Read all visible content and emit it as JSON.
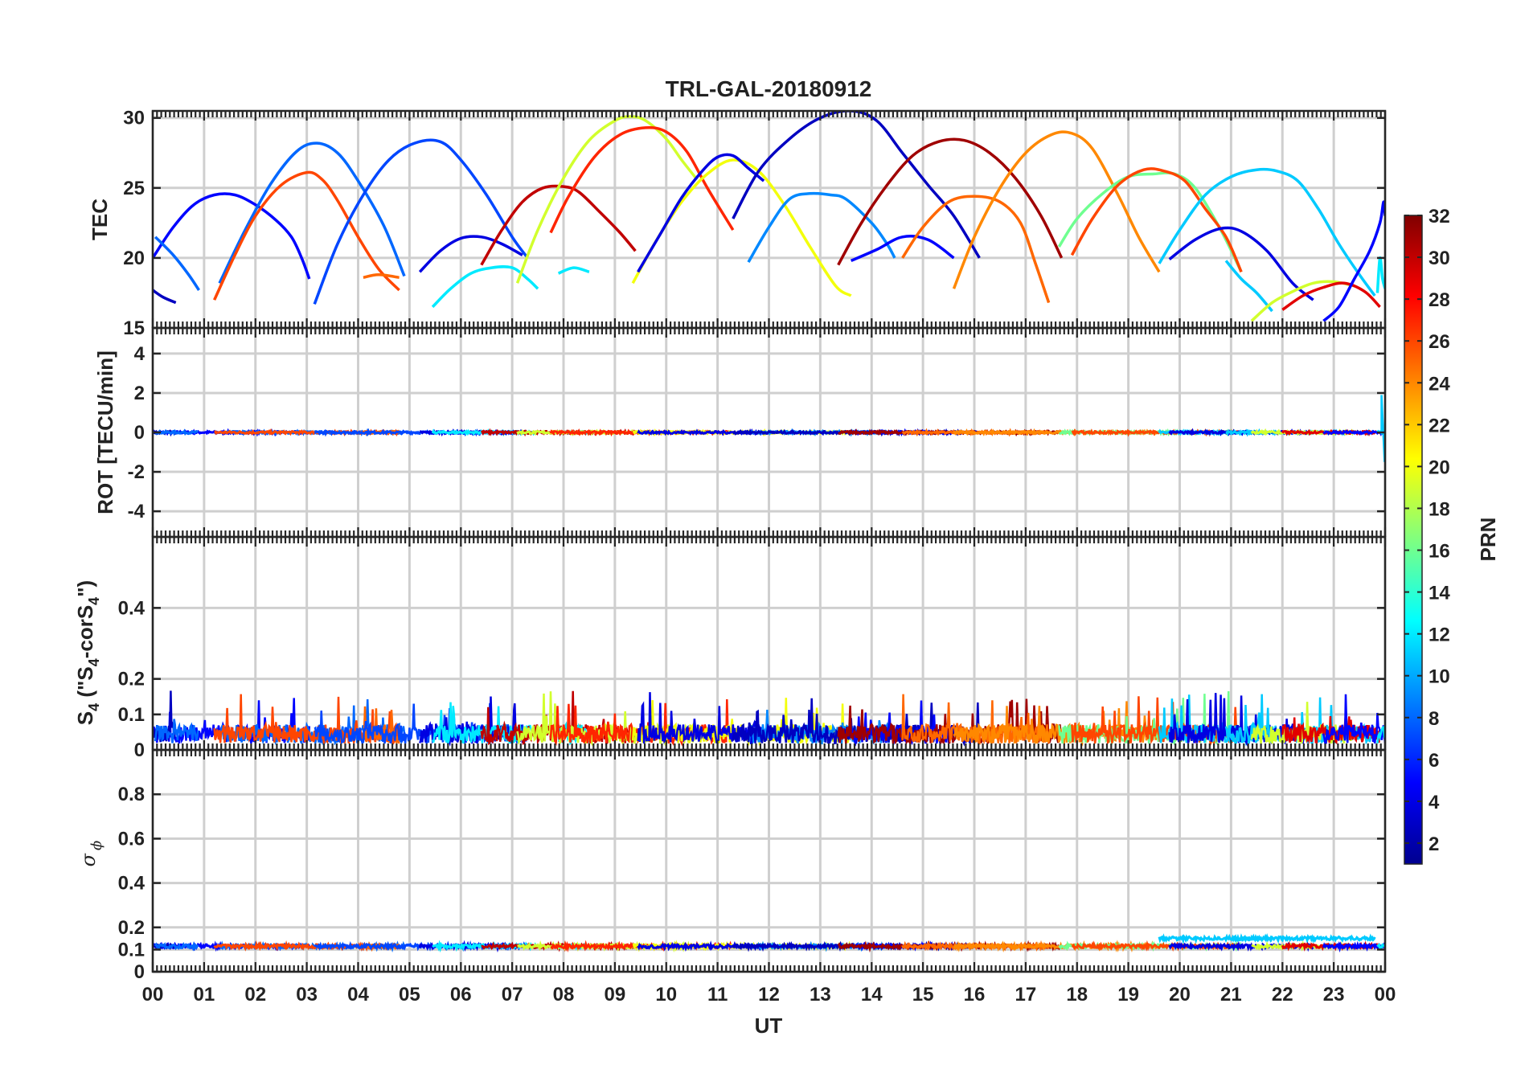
{
  "chart_data": {
    "type": "line",
    "title": "TRL-GAL-20180912",
    "xlabel": "UT",
    "x_ticks": [
      "00",
      "01",
      "02",
      "03",
      "04",
      "05",
      "06",
      "07",
      "08",
      "09",
      "10",
      "11",
      "12",
      "13",
      "14",
      "15",
      "16",
      "17",
      "18",
      "19",
      "20",
      "21",
      "22",
      "23",
      "00"
    ],
    "xlim": [
      0,
      24
    ],
    "colorbar": {
      "label": "PRN",
      "range": [
        1,
        32
      ],
      "ticks": [
        "2",
        "4",
        "6",
        "8",
        "10",
        "12",
        "14",
        "16",
        "18",
        "20",
        "22",
        "24",
        "26",
        "28",
        "30",
        "32"
      ]
    },
    "panels": [
      {
        "name": "tec",
        "ylabel": "TEC",
        "ylim": [
          15,
          30.5
        ],
        "yticks": [
          15,
          20,
          25,
          30
        ],
        "ytick_labels": [
          "15",
          "20",
          "25",
          "30"
        ],
        "series": [
          {
            "prn": 5,
            "x": [
              0,
              0.4,
              0.8,
              1.2,
              1.6,
              2,
              2.4,
              2.7,
              2.9,
              3.05
            ],
            "y": [
              20,
              22.2,
              23.8,
              24.5,
              24.5,
              23.8,
              22.7,
              21.5,
              20,
              18.5
            ]
          },
          {
            "prn": 3,
            "x": [
              0,
              0.2,
              0.45
            ],
            "y": [
              17.7,
              17.2,
              16.8
            ]
          },
          {
            "prn": 8,
            "x": [
              0.05,
              0.4,
              0.7,
              0.9
            ],
            "y": [
              21.5,
              20.2,
              18.8,
              17.7
            ]
          },
          {
            "prn": 8,
            "x": [
              1.3,
              1.8,
              2.3,
              2.8,
              3.2,
              3.6,
              4,
              4.5,
              4.9
            ],
            "y": [
              18.2,
              22,
              25.3,
              27.6,
              28.2,
              27.5,
              25.5,
              22.3,
              18.7
            ]
          },
          {
            "prn": 26,
            "x": [
              1.2,
              1.6,
              2,
              2.5,
              3,
              3.3,
              3.6,
              4,
              4.4,
              4.8
            ],
            "y": [
              17,
              20.2,
              23,
              25.2,
              26.1,
              25.6,
              24.1,
              21.5,
              19.2,
              17.7
            ]
          },
          {
            "prn": 25,
            "x": [
              4.1,
              4.4,
              4.8
            ],
            "y": [
              18.6,
              18.8,
              18.6
            ]
          },
          {
            "prn": 7,
            "x": [
              3.15,
              3.6,
              4.1,
              4.6,
              5.1,
              5.6,
              6,
              6.5,
              7,
              7.3
            ],
            "y": [
              16.7,
              21,
              24.5,
              27,
              28.2,
              28.3,
              27,
              24.5,
              21.5,
              20
            ]
          },
          {
            "prn": 4,
            "x": [
              5.2,
              5.6,
              6,
              6.4,
              6.8,
              7.2
            ],
            "y": [
              19,
              20.5,
              21.4,
              21.5,
              21,
              20.2
            ]
          },
          {
            "prn": 12,
            "x": [
              5.45,
              5.8,
              6.2,
              6.6,
              7,
              7.3,
              7.5
            ],
            "y": [
              16.5,
              17.8,
              18.9,
              19.3,
              19.3,
              18.5,
              17.8
            ]
          },
          {
            "prn": 30,
            "x": [
              6.4,
              6.8,
              7.2,
              7.6,
              8,
              8.3,
              8.7,
              9.1,
              9.4
            ],
            "y": [
              19.5,
              22,
              24,
              25,
              25.1,
              24.7,
              23.3,
              21.8,
              20.5
            ]
          },
          {
            "prn": 12,
            "x": [
              7.9,
              8.2,
              8.5
            ],
            "y": [
              18.9,
              19.3,
              19
            ]
          },
          {
            "prn": 19,
            "x": [
              7.1,
              7.5,
              8,
              8.5,
              9,
              9.3,
              9.6,
              10,
              10.3,
              10.6
            ],
            "y": [
              18.2,
              22,
              25.7,
              28.4,
              29.8,
              30.1,
              29.8,
              28.5,
              27,
              25.6
            ]
          },
          {
            "prn": 27,
            "x": [
              7.75,
              8.1,
              8.6,
              9.1,
              9.6,
              10,
              10.4,
              10.8,
              11.3
            ],
            "y": [
              21.8,
              24.4,
              27.2,
              28.8,
              29.3,
              29,
              27.6,
              25,
              22
            ]
          },
          {
            "prn": 20,
            "x": [
              9.35,
              9.8,
              10.3,
              10.8,
              11.3,
              11.8,
              12.3,
              12.8,
              13.3,
              13.6
            ],
            "y": [
              18.2,
              21.2,
              24,
              26,
              27,
              26.2,
              23.8,
              20.8,
              18,
              17.3
            ]
          },
          {
            "prn": 4,
            "x": [
              9.45,
              9.9,
              10.3,
              10.7,
              11,
              11.3,
              11.6,
              11.9
            ],
            "y": [
              19,
              21.8,
              24.3,
              26.2,
              27.2,
              27.3,
              26.4,
              25.5
            ]
          },
          {
            "prn": 9,
            "x": [
              11.6,
              12,
              12.4,
              12.8,
              13.2,
              13.5,
              14,
              14.3,
              14.45
            ],
            "y": [
              19.7,
              22.2,
              24.2,
              24.6,
              24.5,
              24.2,
              22.5,
              21,
              20
            ]
          },
          {
            "prn": 3,
            "x": [
              11.3,
              11.8,
              12.4,
              13,
              13.6,
              14.1,
              14.6,
              15.1,
              15.6,
              16.1
            ],
            "y": [
              22.8,
              26.2,
              28.5,
              30,
              30.5,
              29.8,
              27.5,
              25.2,
              23,
              20
            ]
          },
          {
            "prn": 5,
            "x": [
              13.6,
              14.1,
              14.6,
              15.1,
              15.6
            ],
            "y": [
              19.8,
              20.6,
              21.5,
              21.3,
              20
            ]
          },
          {
            "prn": 31,
            "x": [
              13.35,
              13.8,
              14.3,
              14.8,
              15.3,
              15.8,
              16.3,
              16.8,
              17.3,
              17.7
            ],
            "y": [
              19.5,
              22.5,
              25.2,
              27.3,
              28.3,
              28.4,
              27.5,
              25.7,
              23,
              20
            ]
          },
          {
            "prn": 25,
            "x": [
              14.6,
              15,
              15.5,
              16,
              16.5,
              16.9,
              17.2,
              17.45
            ],
            "y": [
              20,
              22.2,
              24,
              24.4,
              24,
              22.5,
              19.5,
              16.8
            ]
          },
          {
            "prn": 24,
            "x": [
              15.6,
              16,
              16.5,
              17,
              17.5,
              17.9,
              18.3,
              18.8,
              19.2,
              19.6
            ],
            "y": [
              17.8,
              21.5,
              25,
              27.5,
              28.8,
              28.9,
              27.8,
              24.5,
              21.5,
              19
            ]
          },
          {
            "prn": 16,
            "x": [
              17.65,
              18,
              18.5,
              19,
              19.5,
              19.9,
              20.3,
              20.8,
              21.2
            ],
            "y": [
              20.8,
              22.8,
              24.6,
              25.8,
              26,
              26,
              25,
              22,
              19
            ]
          },
          {
            "prn": 26,
            "x": [
              17.9,
              18.3,
              18.8,
              19.3,
              19.7,
              20.1,
              20.5,
              20.9,
              21.2
            ],
            "y": [
              20.2,
              22.8,
              25.2,
              26.3,
              26.2,
              25.5,
              23.5,
              21.5,
              19
            ]
          },
          {
            "prn": 11,
            "x": [
              19.6,
              20,
              20.5,
              21,
              21.5,
              21.9,
              22.3,
              22.7,
              23.1,
              23.5,
              23.8
            ],
            "y": [
              19.6,
              22,
              24.5,
              25.8,
              26.3,
              26.2,
              25.5,
              23.5,
              21,
              18.8,
              17.3
            ]
          },
          {
            "prn": 4,
            "x": [
              19.8,
              20.3,
              20.8,
              21.2,
              21.7,
              22.2,
              22.6
            ],
            "y": [
              19.9,
              21.3,
              22.1,
              21.9,
              20.5,
              18.2,
              17
            ]
          },
          {
            "prn": 11,
            "x": [
              20.9,
              21.2,
              21.5,
              21.8
            ],
            "y": [
              19.8,
              18.5,
              17.5,
              16.2
            ]
          },
          {
            "prn": 19,
            "x": [
              21.4,
              21.8,
              22.2,
              22.6,
              23,
              23.4
            ],
            "y": [
              15.5,
              16.8,
              17.6,
              18.2,
              18.3,
              18
            ]
          },
          {
            "prn": 29,
            "x": [
              22,
              22.4,
              22.8,
              23.2,
              23.6,
              23.9
            ],
            "y": [
              16.3,
              17.3,
              17.9,
              18.2,
              17.6,
              16.5
            ]
          },
          {
            "prn": 5,
            "x": [
              22.8,
              23.1,
              23.4,
              23.7,
              23.9,
              23.97,
              24
            ],
            "y": [
              15.5,
              16.5,
              18.5,
              20.5,
              22.5,
              24,
              23
            ]
          },
          {
            "prn": 12,
            "x": [
              23.85,
              23.9,
              23.95,
              24
            ],
            "y": [
              17.5,
              20,
              18.5,
              17.8
            ]
          }
        ]
      },
      {
        "name": "rot",
        "ylabel": "ROT [TECU/min]",
        "ylim": [
          -5.3,
          5.3
        ],
        "yticks": [
          -4,
          -2,
          0,
          2,
          4
        ],
        "ytick_labels": [
          "-4",
          "-2",
          "0",
          "2",
          "4"
        ],
        "trace_level": 0,
        "trace_noise": 0.06,
        "spike_at_end": [
          1.9,
          -1.5
        ]
      },
      {
        "name": "s4",
        "ylabel_main": "S",
        "ylabel_sub": "4",
        "ylabel_open": " (\"S",
        "ylabel_mid": "-corS",
        "ylabel_close": "\")",
        "ylim": [
          0,
          0.6
        ],
        "yticks": [
          0,
          0.1,
          0.2,
          0.4
        ],
        "ytick_labels": [
          "0",
          "0.1",
          "0.2",
          "0.4"
        ],
        "trace_base": 0.045,
        "trace_noise": 0.045,
        "peak_max": 0.19
      },
      {
        "name": "sigma_phi",
        "ylabel_main": "σ",
        "ylabel_sub": "ϕ",
        "ylim": [
          0,
          1
        ],
        "yticks": [
          0,
          0.1,
          0.2,
          0.4,
          0.6,
          0.8
        ],
        "ytick_labels": [
          "0",
          "0.1",
          "0.2",
          "0.4",
          "0.6",
          "0.8"
        ],
        "trace_level": 0.115,
        "trace_noise": 0.008,
        "raised_level": 0.15
      }
    ]
  }
}
